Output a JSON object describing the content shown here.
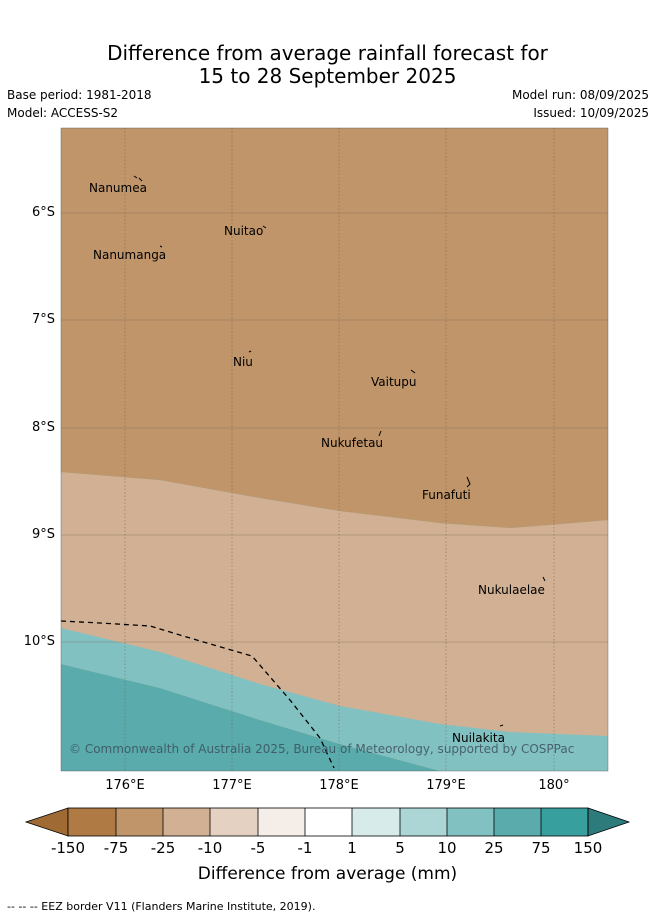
{
  "header": {
    "title_line1": "Difference from average rainfall forecast for",
    "title_line2": "15 to 28 September 2025",
    "base_period": "Base period: 1981-2018",
    "model": "Model: ACCESS-S2",
    "model_run": "Model run: 08/09/2025",
    "issued": "Issued: 10/09/2025"
  },
  "map": {
    "lat_labels": [
      "6°S",
      "7°S",
      "8°S",
      "9°S",
      "10°S"
    ],
    "lon_labels": [
      "176°E",
      "177°E",
      "178°E",
      "179°E",
      "180°"
    ],
    "places": [
      "Nanumea",
      "Nuitao",
      "Nanumanga",
      "Niu",
      "Vaitupu",
      "Nukufetau",
      "Funafuti",
      "Nukulaelae",
      "Nuilakita"
    ],
    "copyright": "© Commonwealth of Australia 2025, Bureau of Meteorology, supported by COSPPac"
  },
  "legend": {
    "ticks": [
      "-150",
      "-75",
      "-25",
      "-10",
      "-5",
      "-1",
      "1",
      "5",
      "10",
      "25",
      "75",
      "150"
    ],
    "title": "Difference from average (mm)",
    "colors": [
      "#9f6a34",
      "#b07a44",
      "#c0956a",
      "#d1b093",
      "#e4d1c2",
      "#f4ede8",
      "#ffffff",
      "#d7ebeb",
      "#acd6d6",
      "#82c1c1",
      "#5aacac",
      "#389f9f",
      "#2e7b7b"
    ]
  },
  "footnote": "-- -- -- EEZ border V11 (Flanders Marine Institute, 2019)."
}
